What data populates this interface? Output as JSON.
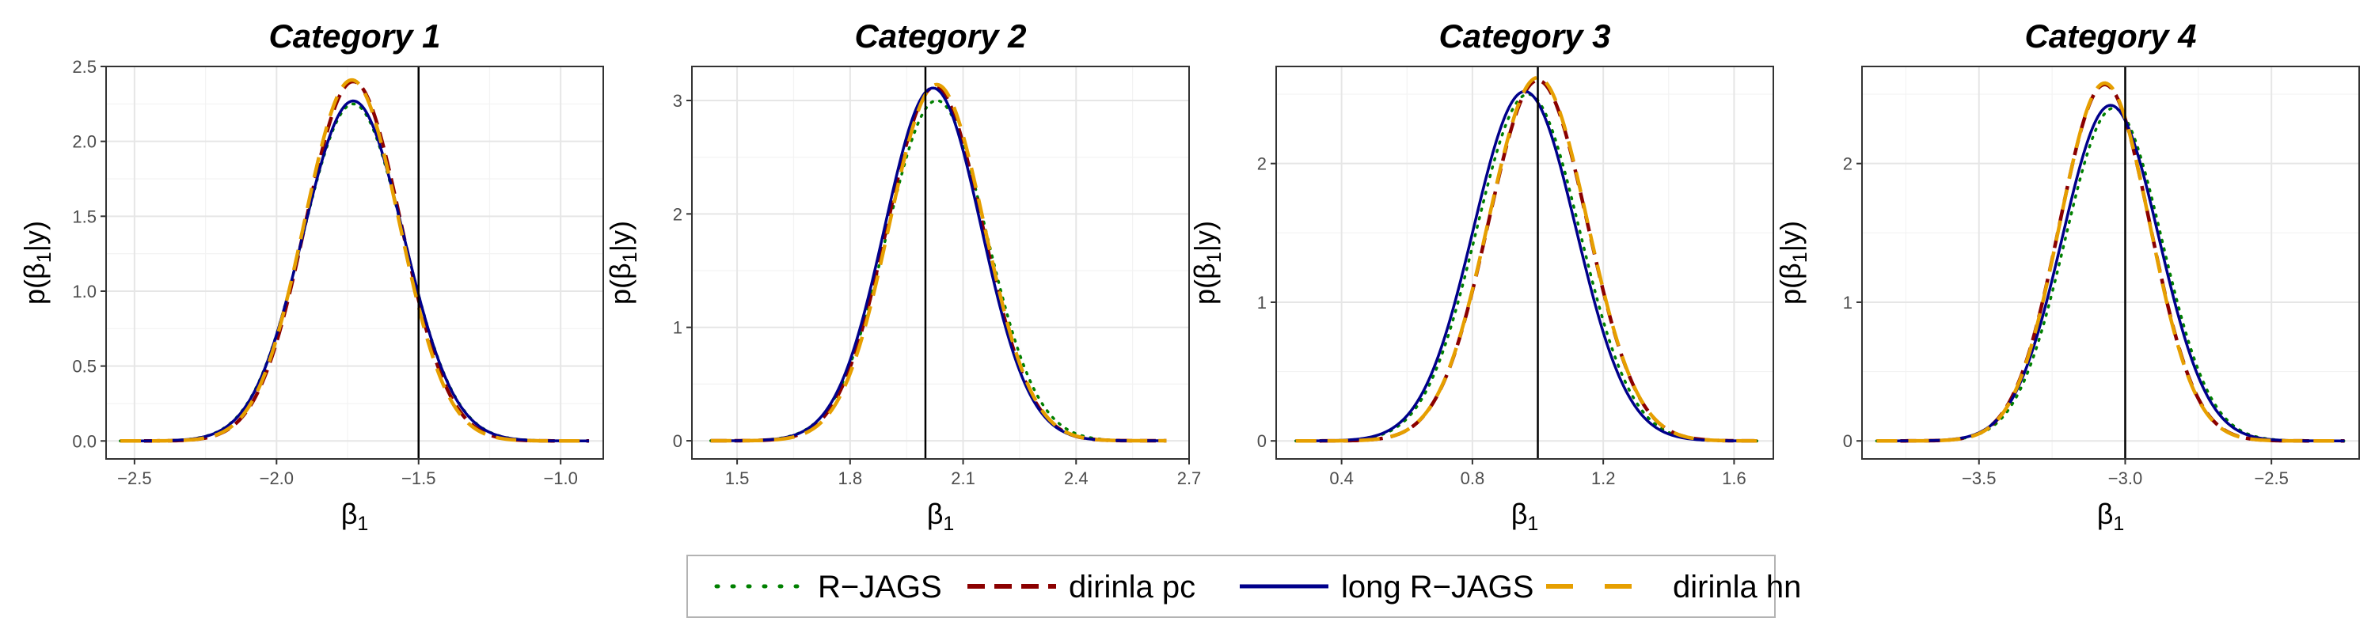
{
  "chart_data": [
    {
      "type": "line",
      "title": "Category 1",
      "xlabel": {
        "base": "β",
        "sub": "1"
      },
      "ylabel": {
        "pre": "p(β",
        "sub": "1",
        "post": "|y)"
      },
      "xlim": [
        -2.6,
        -0.85
      ],
      "ylim": [
        -0.12,
        2.5
      ],
      "xticks": [
        -2.5,
        -2.0,
        -1.5,
        -1.0
      ],
      "xtick_labels": [
        "−2.5",
        "−2.0",
        "−1.5",
        "−1.0"
      ],
      "yticks": [
        0.0,
        0.5,
        1.0,
        1.5,
        2.0,
        2.5
      ],
      "ytick_labels": [
        "0.0",
        "0.5",
        "1.0",
        "1.5",
        "2.0",
        "2.5"
      ],
      "vline": -1.5,
      "grid": true,
      "x_range": [
        -2.55,
        -0.9
      ],
      "series": [
        {
          "name": "R−JAGS",
          "mean": -1.73,
          "sd": 0.178,
          "peak": 2.25
        },
        {
          "name": "dirinla pc",
          "mean": -1.73,
          "sd": 0.168,
          "peak": 2.4
        },
        {
          "name": "long R−JAGS",
          "mean": -1.73,
          "sd": 0.177,
          "peak": 2.27
        },
        {
          "name": "dirinla hn",
          "mean": -1.735,
          "sd": 0.167,
          "peak": 2.41
        }
      ]
    },
    {
      "type": "line",
      "title": "Category 2",
      "xlabel": {
        "base": "β",
        "sub": "1"
      },
      "ylabel": {
        "pre": "p(β",
        "sub": "1",
        "post": "|y)"
      },
      "xlim": [
        1.38,
        2.7
      ],
      "ylim": [
        -0.16,
        3.3
      ],
      "xticks": [
        1.5,
        1.8,
        2.1,
        2.4,
        2.7
      ],
      "xtick_labels": [
        "1.5",
        "1.8",
        "2.1",
        "2.4",
        "2.7"
      ],
      "yticks": [
        0,
        1,
        2,
        3
      ],
      "ytick_labels": [
        "0",
        "1",
        "2",
        "3"
      ],
      "vline": 2.0,
      "grid": true,
      "x_range": [
        1.43,
        2.64
      ],
      "series": [
        {
          "name": "R−JAGS",
          "mean": 2.03,
          "sd": 0.133,
          "peak": 3.0
        },
        {
          "name": "dirinla pc",
          "mean": 2.025,
          "sd": 0.127,
          "peak": 3.12
        },
        {
          "name": "long R−JAGS",
          "mean": 2.02,
          "sd": 0.128,
          "peak": 3.11
        },
        {
          "name": "dirinla hn",
          "mean": 2.03,
          "sd": 0.126,
          "peak": 3.14
        }
      ]
    },
    {
      "type": "line",
      "title": "Category 3",
      "xlabel": {
        "base": "β",
        "sub": "1"
      },
      "ylabel": {
        "pre": "p(β",
        "sub": "1",
        "post": "|y)"
      },
      "xlim": [
        0.2,
        1.72
      ],
      "ylim": [
        -0.13,
        2.7
      ],
      "xticks": [
        0.4,
        0.8,
        1.2,
        1.6
      ],
      "xtick_labels": [
        "0.4",
        "0.8",
        "1.2",
        "1.6"
      ],
      "yticks": [
        0,
        1,
        2
      ],
      "ytick_labels": [
        "0",
        "1",
        "2"
      ],
      "vline": 1.0,
      "grid": true,
      "x_range": [
        0.26,
        1.67
      ],
      "series": [
        {
          "name": "R−JAGS",
          "mean": 0.97,
          "sd": 0.158,
          "peak": 2.5
        },
        {
          "name": "dirinla pc",
          "mean": 1.0,
          "sd": 0.151,
          "peak": 2.6
        },
        {
          "name": "long R−JAGS",
          "mean": 0.96,
          "sd": 0.157,
          "peak": 2.52
        },
        {
          "name": "dirinla hn",
          "mean": 1.0,
          "sd": 0.151,
          "peak": 2.62
        }
      ]
    },
    {
      "type": "line",
      "title": "Category 4",
      "xlabel": {
        "base": "β",
        "sub": "1"
      },
      "ylabel": {
        "pre": "p(β",
        "sub": "1",
        "post": "|y)"
      },
      "xlim": [
        -3.9,
        -2.2
      ],
      "ylim": [
        -0.13,
        2.7
      ],
      "xticks": [
        -3.5,
        -3.0,
        -2.5
      ],
      "xtick_labels": [
        "−3.5",
        "−3.0",
        "−2.5"
      ],
      "yticks": [
        0,
        1,
        2
      ],
      "ytick_labels": [
        "0",
        "1",
        "2"
      ],
      "vline": -3.0,
      "grid": true,
      "x_range": [
        -3.85,
        -2.25
      ],
      "series": [
        {
          "name": "R−JAGS",
          "mean": -3.04,
          "sd": 0.165,
          "peak": 2.4
        },
        {
          "name": "dirinla pc",
          "mean": -3.07,
          "sd": 0.155,
          "peak": 2.57
        },
        {
          "name": "long R−JAGS",
          "mean": -3.05,
          "sd": 0.165,
          "peak": 2.42
        },
        {
          "name": "dirinla hn",
          "mean": -3.07,
          "sd": 0.154,
          "peak": 2.58
        }
      ]
    }
  ],
  "legend": {
    "placement": "bottom",
    "items": [
      {
        "name": "R−JAGS",
        "color": "#008000",
        "dash": "dotted"
      },
      {
        "name": "dirinla pc",
        "color": "#8B0000",
        "dash": "dashed"
      },
      {
        "name": "long R−JAGS",
        "color": "#00008B",
        "dash": "solid"
      },
      {
        "name": "dirinla hn",
        "color": "#E69F00",
        "dash": "longdash"
      }
    ]
  },
  "colors": {
    "R−JAGS": "#008000",
    "dirinla pc": "#8B0000",
    "long R−JAGS": "#00008B",
    "dirinla hn": "#E69F00",
    "vline": "#000000",
    "grid": "#ebebeb"
  }
}
